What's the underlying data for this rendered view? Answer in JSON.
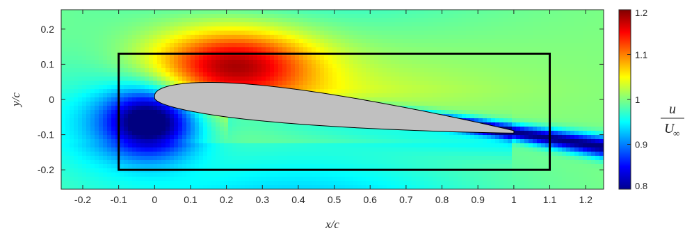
{
  "chart_data": {
    "type": "heatmap",
    "title": "",
    "xlabel": "x/c",
    "ylabel": "y/c",
    "xlim": [
      -0.26,
      1.25
    ],
    "ylim": [
      -0.255,
      0.255
    ],
    "xticks": [
      "-0.2",
      "-0.1",
      "0",
      "0.1",
      "0.2",
      "0.3",
      "0.4",
      "0.5",
      "0.6",
      "0.7",
      "0.8",
      "0.9",
      "1",
      "1.1",
      "1.2"
    ],
    "yticks": [
      "0.2",
      "0.1",
      "0",
      "-0.1",
      "-0.2"
    ],
    "field": "u/U∞",
    "colorbar": {
      "label_num": "u",
      "label_den": "U",
      "label_den_sub": "∞",
      "range": [
        0.8,
        1.2
      ],
      "ticks": [
        "1.2",
        "1.1",
        "1",
        "0.9",
        "0.8"
      ],
      "colormap": "jet"
    },
    "features": [
      {
        "kind": "acceleration",
        "x": 0.22,
        "y": 0.1,
        "value": 1.18
      },
      {
        "kind": "stagnation",
        "x": -0.01,
        "y": -0.06,
        "value": 0.8
      },
      {
        "kind": "wake",
        "x_start": 0.95,
        "y_start": -0.085,
        "x_end": 1.25,
        "y_end": -0.135,
        "value": 0.8
      }
    ],
    "box": {
      "x0": -0.1,
      "x1": 1.1,
      "y0": -0.2,
      "y1": 0.13
    },
    "airfoil": {
      "le_x": 0.0,
      "le_y": 0.0,
      "te_x": 1.0,
      "te_y": -0.1,
      "fill": "#c0c0c0"
    }
  }
}
